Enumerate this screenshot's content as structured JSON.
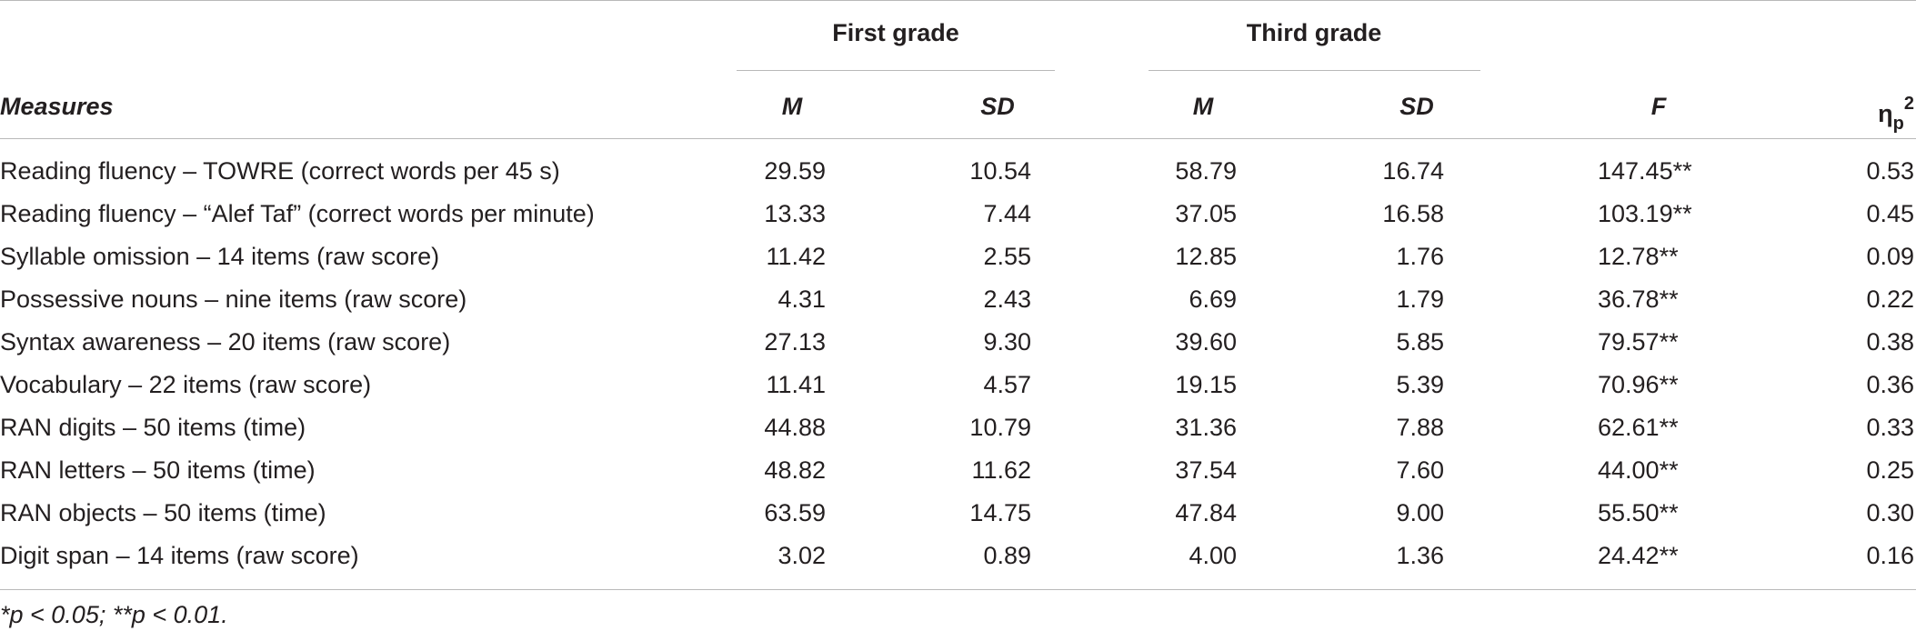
{
  "header": {
    "group1": "First grade",
    "group2": "Third grade",
    "measures": "Measures",
    "m1": "M",
    "sd1": "SD",
    "m2": "M",
    "sd2": "SD",
    "f": "F",
    "eta_symbol": "η",
    "eta_sub": "p",
    "eta_sup": "2"
  },
  "rows": [
    {
      "measure": "Reading fluency – TOWRE (correct words per 45 s)",
      "m1": "29.59",
      "sd1": "10.54",
      "m2": "58.79",
      "sd2": "16.74",
      "f": "147.45**",
      "eta": "0.53"
    },
    {
      "measure": "Reading fluency – “Alef Taf” (correct words per minute)",
      "m1": "13.33",
      "sd1": "7.44",
      "m2": "37.05",
      "sd2": "16.58",
      "f": "103.19**",
      "eta": "0.45"
    },
    {
      "measure": "Syllable omission – 14 items (raw score)",
      "m1": "11.42",
      "sd1": "2.55",
      "m2": "12.85",
      "sd2": "1.76",
      "f": "12.78**",
      "eta": "0.09"
    },
    {
      "measure": "Possessive nouns – nine items (raw score)",
      "m1": "4.31",
      "sd1": "2.43",
      "m2": "6.69",
      "sd2": "1.79",
      "f": "36.78**",
      "eta": "0.22"
    },
    {
      "measure": "Syntax awareness – 20 items (raw score)",
      "m1": "27.13",
      "sd1": "9.30",
      "m2": "39.60",
      "sd2": "5.85",
      "f": "79.57**",
      "eta": "0.38"
    },
    {
      "measure": "Vocabulary – 22 items (raw score)",
      "m1": "11.41",
      "sd1": "4.57",
      "m2": "19.15",
      "sd2": "5.39",
      "f": "70.96**",
      "eta": "0.36"
    },
    {
      "measure": "RAN digits – 50 items (time)",
      "m1": "44.88",
      "sd1": "10.79",
      "m2": "31.36",
      "sd2": "7.88",
      "f": "62.61**",
      "eta": "0.33"
    },
    {
      "measure": "RAN letters – 50 items (time)",
      "m1": "48.82",
      "sd1": "11.62",
      "m2": "37.54",
      "sd2": "7.60",
      "f": "44.00**",
      "eta": "0.25"
    },
    {
      "measure": "RAN objects – 50 items (time)",
      "m1": "63.59",
      "sd1": "14.75",
      "m2": "47.84",
      "sd2": "9.00",
      "f": "55.50**",
      "eta": "0.30"
    },
    {
      "measure": "Digit span – 14 items (raw score)",
      "m1": "3.02",
      "sd1": "0.89",
      "m2": "4.00",
      "sd2": "1.36",
      "f": "24.42**",
      "eta": "0.16"
    }
  ],
  "footnote": "*p < 0.05; **p < 0.01."
}
